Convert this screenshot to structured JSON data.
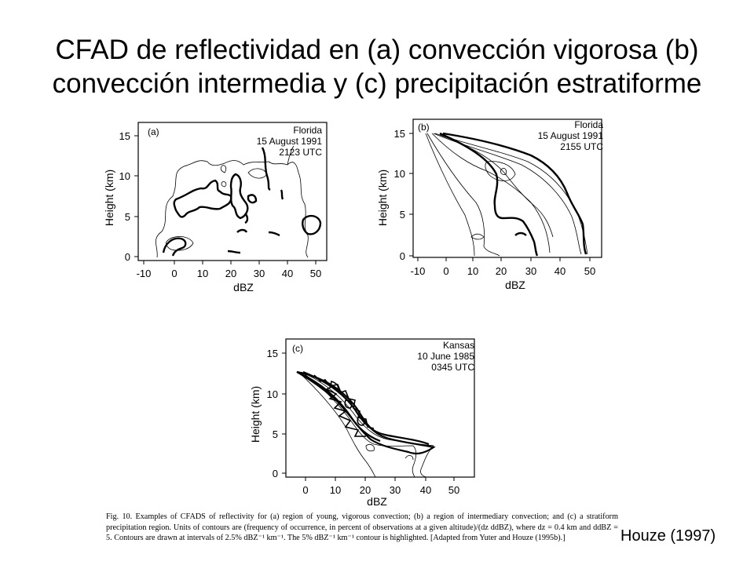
{
  "slide": {
    "title_line1": "CFAD de reflectividad en (a) convección vigorosa (b)",
    "title_line2": "convección intermedia y (c) precipitación estratiforme",
    "credit": "Houze (1997)"
  },
  "figure": {
    "caption": "Fig. 10. Examples of CFADS of reflectivity for (a) region of young, vigorous convection; (b) a region of intermediary convection; and (c) a stratiform precipitation region. Units of contours are (frequency of occurrence, in percent of observations at a given altitude)/(dz ddBZ), where dz = 0.4 km and ddBZ = 5. Contours are drawn at intervals of 2.5% dBZ⁻¹ km⁻¹. The 5% dBZ⁻¹ km⁻¹ contour is highlighted. [Adapted from Yuter and Houze (1995b).]"
  },
  "panels": [
    {
      "id": "a",
      "label": "(a)",
      "location": "Florida",
      "date": "15 August 1991",
      "time": "2123 UTC",
      "xlabel": "dBZ",
      "ylabel": "Height (km)",
      "x_ticks": [
        "-10",
        "0",
        "10",
        "20",
        "30",
        "40",
        "50"
      ],
      "y_ticks": [
        "0",
        "5",
        "10",
        "15"
      ]
    },
    {
      "id": "b",
      "label": "(b)",
      "location": "Florida",
      "date": "15 August 1991",
      "time": "2155 UTC",
      "xlabel": "dBZ",
      "ylabel": "Height (km)",
      "x_ticks": [
        "-10",
        "0",
        "10",
        "20",
        "30",
        "40",
        "50"
      ],
      "y_ticks": [
        "0",
        "5",
        "10",
        "15"
      ]
    },
    {
      "id": "c",
      "label": "(c)",
      "location": "Kansas",
      "date": "10 June 1985",
      "time": "0345 UTC",
      "xlabel": "dBZ",
      "ylabel": "Height (km)",
      "x_ticks": [
        "0",
        "10",
        "20",
        "30",
        "40",
        "50"
      ],
      "y_ticks": [
        "0",
        "5",
        "10",
        "15"
      ]
    }
  ]
}
